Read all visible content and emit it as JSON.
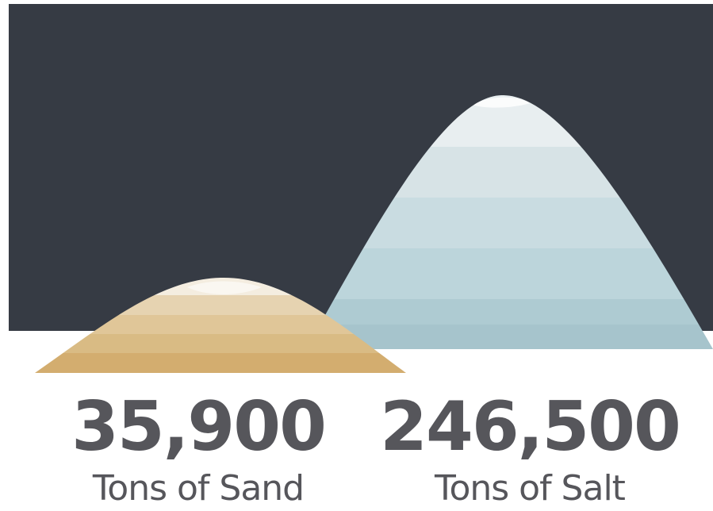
{
  "colors": {
    "night_sky": "#363b44",
    "ground": "#ffffff",
    "text": "#56565b",
    "sand_bands": [
      "#f4ede0",
      "#e6d3b1",
      "#e0c698",
      "#d9bb84",
      "#d3ad6f"
    ],
    "salt_bands": [
      "#e8eef0",
      "#d7e3e6",
      "#c9dce1",
      "#bcd5db",
      "#aecbd2",
      "#a6c4cc"
    ]
  },
  "stats": {
    "sand": {
      "value": "35,900",
      "label": "Tons of Sand",
      "icon": "sand-pile-icon"
    },
    "salt": {
      "value": "246,500",
      "label": "Tons of Salt",
      "icon": "salt-pile-icon"
    }
  }
}
